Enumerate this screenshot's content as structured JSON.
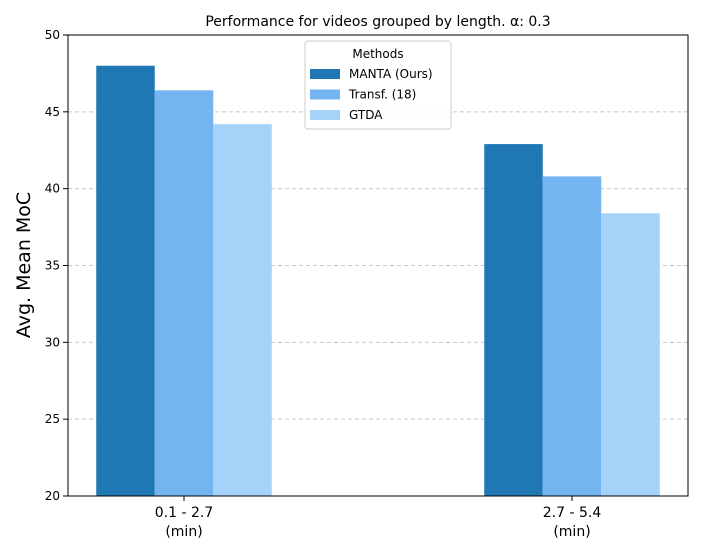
{
  "chart_data": {
    "type": "bar",
    "title": "Performance for videos grouped by length. α: 0.3",
    "xlabel": "",
    "ylabel": "Avg. Mean MoC",
    "ylim": [
      20,
      50
    ],
    "yticks": [
      20,
      25,
      30,
      35,
      40,
      45,
      50
    ],
    "grid": "y-dashed",
    "categories": [
      {
        "line1": "0.1 - 2.7",
        "line2": "(min)"
      },
      {
        "line1": "2.7 - 5.4",
        "line2": "(min)"
      }
    ],
    "legend": {
      "title": "Methods",
      "placement": "top-center"
    },
    "series": [
      {
        "name": "MANTA (Ours)",
        "color": "#1f77b4",
        "values": [
          48.0,
          42.9
        ]
      },
      {
        "name": "Transf. (18)",
        "color": "#74b4f0",
        "values": [
          46.4,
          40.8
        ]
      },
      {
        "name": "GTDA",
        "color": "#a4d2f8",
        "values": [
          44.2,
          38.4
        ]
      }
    ]
  }
}
